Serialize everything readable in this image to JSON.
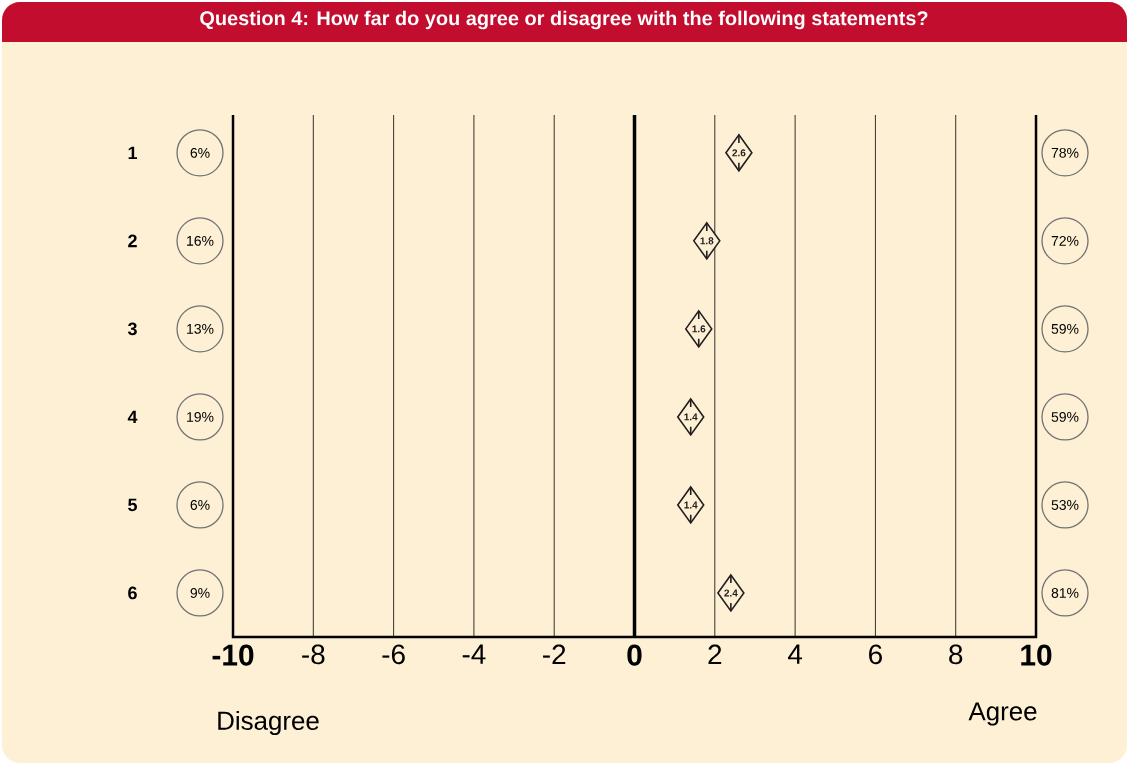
{
  "chart_data": {
    "type": "scatter",
    "title": "Question 4: How far do you agree or disagree with the following statements?",
    "categories": [
      "1",
      "2",
      "3",
      "4",
      "5",
      "6"
    ],
    "orientation": "horizontal",
    "series": [
      {
        "color": "#231f20",
        "values": [
          2.6,
          1.8,
          1.6,
          1.4,
          1.4,
          2.4
        ]
      }
    ],
    "xlim": [
      -10,
      10
    ],
    "xticks": [
      -10,
      -8,
      -6,
      -4,
      -2,
      0,
      2,
      4,
      6,
      8,
      10
    ],
    "grid": "x",
    "marker": "diamond",
    "data_labels": true,
    "annotations": [
      "6%",
      "16%",
      "13%",
      "19%",
      "6%",
      "9%",
      "78%",
      "72%",
      "59%",
      "59%",
      "53%",
      "81%",
      "Disagree",
      "Agree"
    ]
  }
}
